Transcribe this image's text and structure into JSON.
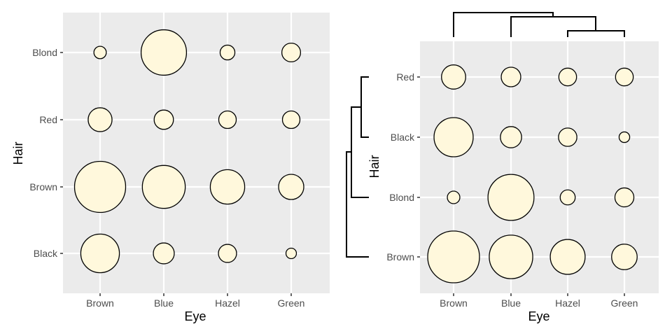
{
  "colors": {
    "panel_bg": "#ebebeb",
    "grid": "#ffffff",
    "bubble_fill": "#fff8dc",
    "bubble_stroke": "#000000",
    "dendrogram": "#000000",
    "tick_text": "#4d4d4d"
  },
  "chart_data": [
    {
      "type": "scatter",
      "subtype": "balloon-plot",
      "title": "",
      "xlabel": "Eye",
      "ylabel": "Hair",
      "x_categories": [
        "Brown",
        "Blue",
        "Hazel",
        "Green"
      ],
      "y_categories": [
        "Black",
        "Brown",
        "Red",
        "Blond"
      ],
      "grid": true,
      "legend": "none",
      "points": [
        {
          "hair": "Blond",
          "eye": "Brown",
          "value": 7
        },
        {
          "hair": "Blond",
          "eye": "Blue",
          "value": 94
        },
        {
          "hair": "Blond",
          "eye": "Hazel",
          "value": 10
        },
        {
          "hair": "Blond",
          "eye": "Green",
          "value": 16
        },
        {
          "hair": "Red",
          "eye": "Brown",
          "value": 26
        },
        {
          "hair": "Red",
          "eye": "Blue",
          "value": 17
        },
        {
          "hair": "Red",
          "eye": "Hazel",
          "value": 14
        },
        {
          "hair": "Red",
          "eye": "Green",
          "value": 14
        },
        {
          "hair": "Brown",
          "eye": "Brown",
          "value": 119
        },
        {
          "hair": "Brown",
          "eye": "Blue",
          "value": 84
        },
        {
          "hair": "Brown",
          "eye": "Hazel",
          "value": 54
        },
        {
          "hair": "Brown",
          "eye": "Green",
          "value": 29
        },
        {
          "hair": "Black",
          "eye": "Brown",
          "value": 68
        },
        {
          "hair": "Black",
          "eye": "Blue",
          "value": 20
        },
        {
          "hair": "Black",
          "eye": "Hazel",
          "value": 15
        },
        {
          "hair": "Black",
          "eye": "Green",
          "value": 5
        }
      ]
    },
    {
      "type": "scatter",
      "subtype": "balloon-plot-with-dendrograms",
      "title": "",
      "xlabel": "Eye",
      "ylabel": "Hair",
      "x_categories": [
        "Brown",
        "Blue",
        "Hazel",
        "Green"
      ],
      "y_categories": [
        "Brown",
        "Blond",
        "Black",
        "Red"
      ],
      "grid": true,
      "legend": "none",
      "column_dendrogram": "Brown joins (Blue joins (Hazel, Green))",
      "row_dendrogram": "Brown joins (Blond joins (Black, Red))",
      "points": [
        {
          "hair": "Red",
          "eye": "Brown",
          "value": 26
        },
        {
          "hair": "Red",
          "eye": "Blue",
          "value": 17
        },
        {
          "hair": "Red",
          "eye": "Hazel",
          "value": 14
        },
        {
          "hair": "Red",
          "eye": "Green",
          "value": 14
        },
        {
          "hair": "Black",
          "eye": "Brown",
          "value": 68
        },
        {
          "hair": "Black",
          "eye": "Blue",
          "value": 20
        },
        {
          "hair": "Black",
          "eye": "Hazel",
          "value": 15
        },
        {
          "hair": "Black",
          "eye": "Green",
          "value": 5
        },
        {
          "hair": "Blond",
          "eye": "Brown",
          "value": 7
        },
        {
          "hair": "Blond",
          "eye": "Blue",
          "value": 94
        },
        {
          "hair": "Blond",
          "eye": "Hazel",
          "value": 10
        },
        {
          "hair": "Blond",
          "eye": "Green",
          "value": 16
        },
        {
          "hair": "Brown",
          "eye": "Brown",
          "value": 119
        },
        {
          "hair": "Brown",
          "eye": "Blue",
          "value": 84
        },
        {
          "hair": "Brown",
          "eye": "Hazel",
          "value": 54
        },
        {
          "hair": "Brown",
          "eye": "Green",
          "value": 29
        }
      ]
    }
  ]
}
